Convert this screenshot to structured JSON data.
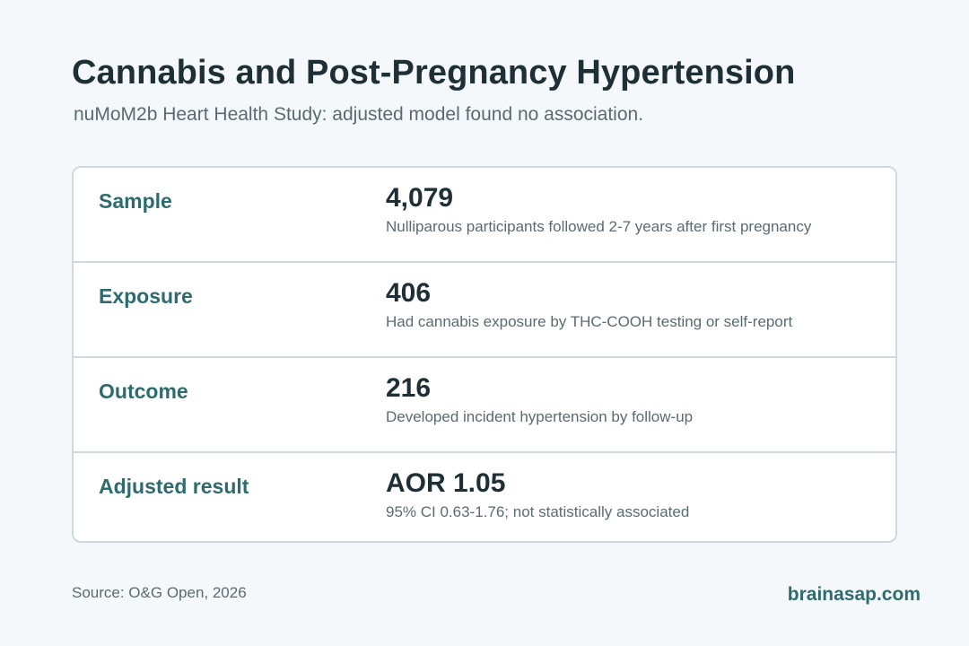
{
  "header": {
    "title": "Cannabis and Post-Pregnancy Hypertension",
    "subtitle": "nuMoM2b Heart Health Study: adjusted model found no association."
  },
  "rows": [
    {
      "label": "Sample",
      "value": "4,079",
      "description": "Nulliparous participants followed 2-7 years after first pregnancy"
    },
    {
      "label": "Exposure",
      "value": "406",
      "description": "Had cannabis exposure by THC-COOH testing or self-report"
    },
    {
      "label": "Outcome",
      "value": "216",
      "description": "Developed incident hypertension by follow-up"
    },
    {
      "label": "Adjusted result",
      "value": "AOR 1.05",
      "description": "95% CI 0.63-1.76; not statistically associated"
    }
  ],
  "footer": {
    "source": "Source: O&G Open, 2026",
    "brand": "brainasap.com"
  },
  "colors": {
    "background": "#f4f8fb",
    "title": "#1f2f36",
    "accent": "#2f6b6e",
    "muted": "#5b6a71",
    "border": "#cfd9de"
  }
}
